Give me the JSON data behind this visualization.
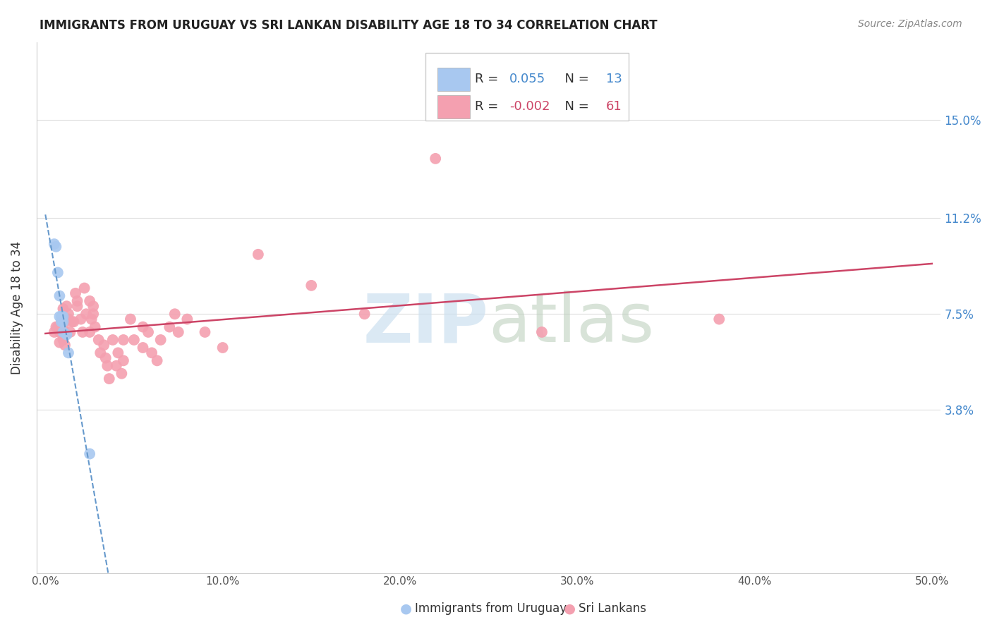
{
  "title": "IMMIGRANTS FROM URUGUAY VS SRI LANKAN DISABILITY AGE 18 TO 34 CORRELATION CHART",
  "source": "Source: ZipAtlas.com",
  "ylabel_label": "Disability Age 18 to 34",
  "blue_color": "#a8c8f0",
  "pink_color": "#f4a0b0",
  "blue_line_color": "#6699cc",
  "pink_line_color": "#cc4466",
  "grid_color": "#dddddd",
  "ytick_vals": [
    0.038,
    0.075,
    0.112,
    0.15
  ],
  "ytick_labels": [
    "3.8%",
    "7.5%",
    "11.2%",
    "15.0%"
  ],
  "xtick_vals": [
    0.0,
    0.1,
    0.2,
    0.3,
    0.4,
    0.5
  ],
  "xtick_labels": [
    "0.0%",
    "10.0%",
    "20.0%",
    "30.0%",
    "40.0%",
    "50.0%"
  ],
  "xlim": [
    -0.005,
    0.505
  ],
  "ylim": [
    -0.025,
    0.18
  ],
  "uruguay_x": [
    0.005,
    0.006,
    0.007,
    0.008,
    0.008,
    0.009,
    0.009,
    0.01,
    0.01,
    0.01,
    0.012,
    0.013,
    0.025
  ],
  "uruguay_y": [
    0.102,
    0.101,
    0.091,
    0.082,
    0.074,
    0.074,
    0.072,
    0.074,
    0.072,
    0.068,
    0.067,
    0.06,
    0.021
  ],
  "srilanka_x": [
    0.005,
    0.006,
    0.007,
    0.008,
    0.008,
    0.009,
    0.01,
    0.01,
    0.01,
    0.011,
    0.012,
    0.013,
    0.013,
    0.014,
    0.015,
    0.016,
    0.017,
    0.018,
    0.018,
    0.02,
    0.021,
    0.022,
    0.023,
    0.025,
    0.025,
    0.026,
    0.027,
    0.027,
    0.028,
    0.03,
    0.031,
    0.033,
    0.034,
    0.035,
    0.036,
    0.038,
    0.04,
    0.041,
    0.043,
    0.044,
    0.044,
    0.048,
    0.05,
    0.055,
    0.055,
    0.058,
    0.06,
    0.063,
    0.065,
    0.07,
    0.073,
    0.075,
    0.08,
    0.09,
    0.1,
    0.12,
    0.15,
    0.18,
    0.22,
    0.28,
    0.38
  ],
  "srilanka_y": [
    0.068,
    0.07,
    0.07,
    0.068,
    0.064,
    0.072,
    0.077,
    0.07,
    0.065,
    0.063,
    0.078,
    0.075,
    0.073,
    0.068,
    0.072,
    0.072,
    0.083,
    0.08,
    0.078,
    0.073,
    0.068,
    0.085,
    0.075,
    0.08,
    0.068,
    0.073,
    0.078,
    0.075,
    0.07,
    0.065,
    0.06,
    0.063,
    0.058,
    0.055,
    0.05,
    0.065,
    0.055,
    0.06,
    0.052,
    0.065,
    0.057,
    0.073,
    0.065,
    0.07,
    0.062,
    0.068,
    0.06,
    0.057,
    0.065,
    0.07,
    0.075,
    0.068,
    0.073,
    0.068,
    0.062,
    0.098,
    0.086,
    0.075,
    0.135,
    0.068,
    0.073
  ]
}
